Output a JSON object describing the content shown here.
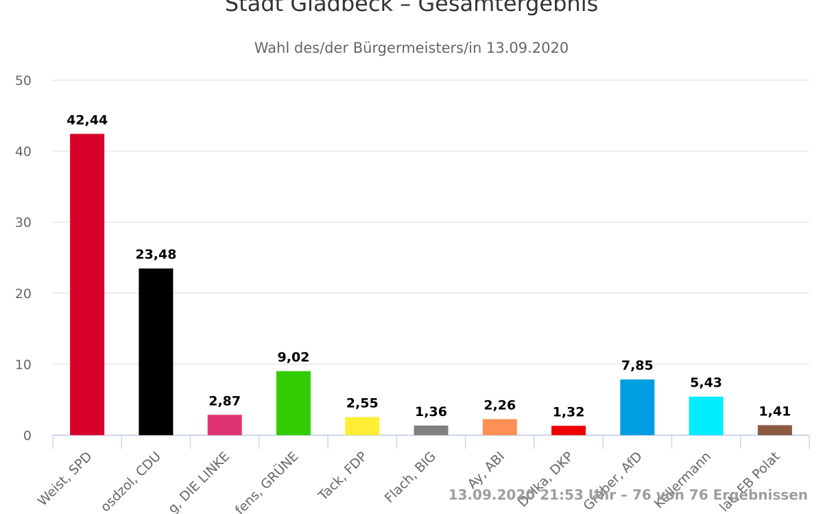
{
  "chart_data": {
    "type": "bar",
    "title": "Stadt Gladbeck – Gesamtergebnis",
    "subtitle": "Wahl des/der Bürgermeisters/in 13.09.2020",
    "categories": [
      "Weist, SPD",
      "osdzol, CDU",
      "g, DIE LINKE",
      "fens, GRÜNE",
      "Tack, FDP",
      "Flach, BIG",
      "Ay, ABI",
      "Dolka, DKP",
      "Gräber, AfD",
      "Kellermann",
      "lat, EB Polat"
    ],
    "values": [
      42.44,
      23.48,
      2.87,
      9.02,
      2.55,
      1.36,
      2.26,
      1.32,
      7.85,
      5.43,
      1.41
    ],
    "data_labels": [
      "42,44",
      "23,48",
      "2,87",
      "9,02",
      "2,55",
      "1,36",
      "2,26",
      "1,32",
      "7,85",
      "5,43",
      "1,41"
    ],
    "colors": [
      "#d6002a",
      "#000000",
      "#e03371",
      "#33cc00",
      "#ffee33",
      "#808080",
      "#ff9055",
      "#ee0000",
      "#009ee0",
      "#00eeff",
      "#8b5a40"
    ],
    "ylim": [
      0,
      50
    ],
    "yticks": [
      "0",
      "10",
      "20",
      "30",
      "40",
      "50"
    ],
    "grid": true,
    "xlabel": "",
    "ylabel": ""
  },
  "footer": "13.09.2020 21:53 Uhr – 76 von 76 Ergebnissen"
}
